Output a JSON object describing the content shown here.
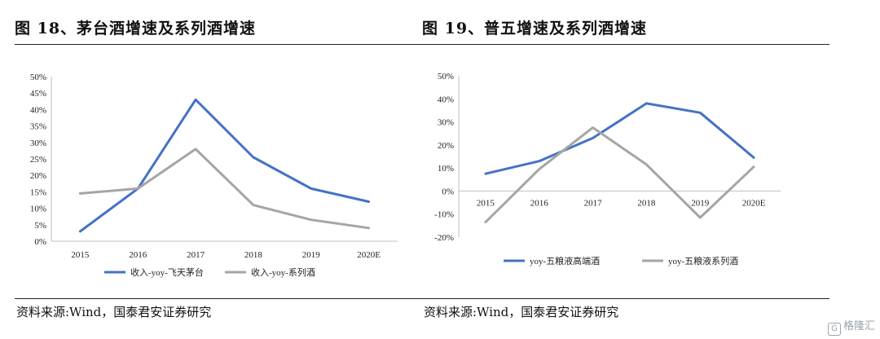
{
  "watermark": {
    "icon": "G",
    "text": "格隆汇"
  },
  "charts": [
    {
      "figure_title": "图 18、茅台酒增速及系列酒增速",
      "source": "资料来源:Wind，国泰君安证券研究",
      "legend": [
        "收入-yoy-飞天茅台",
        "收入-yoy-系列酒"
      ],
      "colors": [
        "#4472C4",
        "#A5A5A5"
      ]
    },
    {
      "figure_title": "图 19、普五增速及系列酒增速",
      "source": "资料来源:Wind，国泰君安证券研究",
      "legend": [
        "yoy-五粮液高端酒",
        "yoy-五粮液系列酒"
      ],
      "colors": [
        "#4472C4",
        "#A5A5A5"
      ]
    }
  ],
  "chart_data": [
    {
      "type": "line",
      "title": "",
      "categories": [
        "2015",
        "2016",
        "2017",
        "2018",
        "2019",
        "2020E"
      ],
      "y_ticks": [
        "0%",
        "5%",
        "10%",
        "15%",
        "20%",
        "25%",
        "30%",
        "35%",
        "40%",
        "45%",
        "50%"
      ],
      "ylim": [
        0,
        50
      ],
      "grid": false,
      "legend_position": "bottom",
      "series": [
        {
          "name": "收入-yoy-飞天茅台",
          "values": [
            3,
            16,
            43,
            25.5,
            16,
            12
          ]
        },
        {
          "name": "收入-yoy-系列酒",
          "values": [
            14.5,
            16,
            28,
            11,
            6.5,
            4
          ]
        }
      ]
    },
    {
      "type": "line",
      "title": "",
      "categories": [
        "2015",
        "2016",
        "2017",
        "2018",
        "2019",
        "2020E"
      ],
      "y_ticks": [
        "-20%",
        "-10%",
        "0%",
        "10%",
        "20%",
        "30%",
        "40%",
        "50%"
      ],
      "ylim": [
        -20,
        50
      ],
      "grid": false,
      "legend_position": "bottom",
      "series": [
        {
          "name": "yoy-五粮液高端酒",
          "values": [
            7.5,
            13,
            23,
            38,
            34,
            14.5
          ]
        },
        {
          "name": "yoy-五粮液系列酒",
          "values": [
            -13.5,
            9.5,
            27.5,
            11.5,
            -11.5,
            10.5
          ]
        }
      ]
    }
  ]
}
